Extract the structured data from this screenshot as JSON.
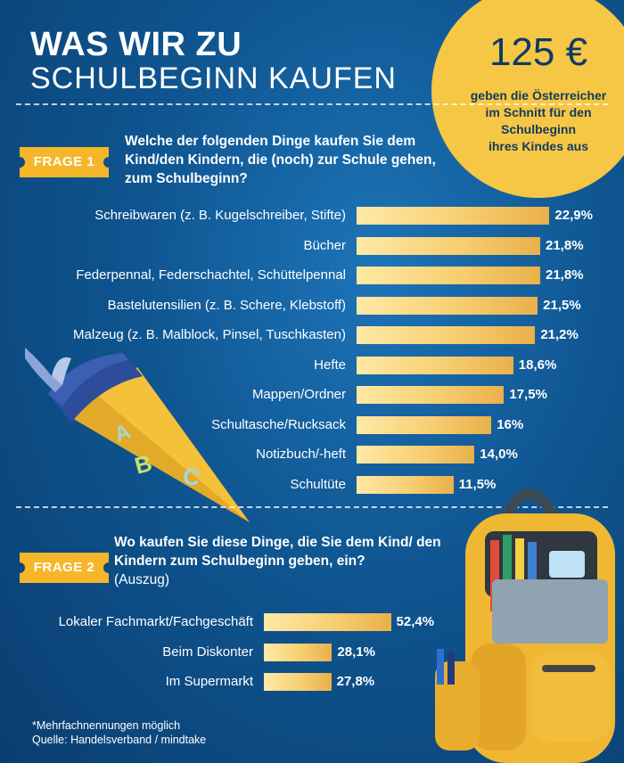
{
  "header": {
    "title_line1": "WAS WIR ZU",
    "title_line2": "SCHULBEGINN KAUFEN"
  },
  "highlight": {
    "amount": "125 €",
    "text_lines": [
      "geben die Österreicher",
      "im Schnitt für den",
      "Schulbeginn",
      "ihres Kindes aus"
    ]
  },
  "colors": {
    "background": "#0f5590",
    "accent": "#f6c744",
    "bar": "#f7cf72"
  },
  "chart_data": [
    {
      "type": "bar",
      "orientation": "horizontal",
      "tag": "FRAGE 1",
      "title": "Welche der folgenden Dinge kaufen Sie dem Kind/den Kindern, die (noch) zur Schule gehen, zum Schulbeginn?",
      "categories": [
        "Schreibwaren (z. B. Kugelschreiber, Stifte)",
        "Bücher",
        "Federpennal, Federschachtel, Schüttelpennal",
        "Bastelutensilien (z. B. Schere, Klebstoff)",
        "Malzeug (z. B. Malblock, Pinsel, Tuschkasten)",
        "Hefte",
        "Mappen/Ordner",
        "Schultasche/Rucksack",
        "Notizbuch/-heft",
        "Schultüte"
      ],
      "values": [
        22.9,
        21.8,
        21.8,
        21.5,
        21.2,
        18.6,
        17.5,
        16,
        14.0,
        11.5
      ],
      "value_labels": [
        "22,9%",
        "21,8%",
        "21,8%",
        "21,5%",
        "21,2%",
        "18,6%",
        "17,5%",
        "16%",
        "14,0%",
        "11,5%"
      ]
    },
    {
      "type": "bar",
      "orientation": "horizontal",
      "tag": "FRAGE 2",
      "title": "Wo kaufen Sie diese Dinge, die Sie dem Kind/ den Kindern zum Schulbeginn geben, ein?",
      "subtitle": "(Auszug)",
      "categories": [
        "Lokaler Fachmarkt/Fachgeschäft",
        "Beim Diskonter",
        "Im Supermarkt"
      ],
      "values": [
        52.4,
        28.1,
        27.8
      ],
      "value_labels": [
        "52,4%",
        "28,1%",
        "27,8%"
      ]
    }
  ],
  "footer": {
    "line1": "*Mehrfachnennungen möglich",
    "line2": "Quelle: Handelsverband / mindtake"
  },
  "images": {
    "cone": "school-cone-illustration",
    "backpack": "school-backpack-photo"
  }
}
